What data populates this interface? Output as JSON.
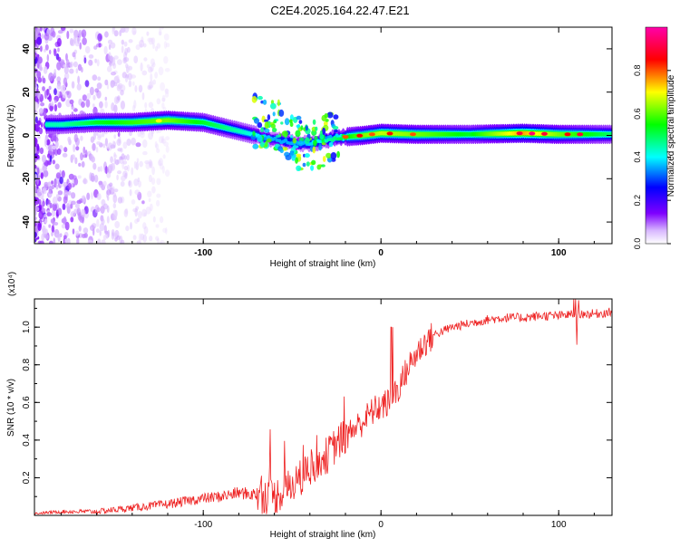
{
  "title": "C2E4.2025.164.22.47.E21",
  "chart_data": [
    {
      "type": "heatmap",
      "xlabel": "Height of straight line (km)",
      "ylabel": "Frequency (Hz)",
      "xlim": [
        -195,
        130
      ],
      "ylim": [
        -50,
        50
      ],
      "xticks": [
        -100,
        0,
        100
      ],
      "xtick_labels": [
        "-100",
        "0",
        "100"
      ],
      "yticks": [
        -40,
        -20,
        0,
        20,
        40
      ],
      "ytick_labels": [
        "-40",
        "-20",
        "0",
        "20",
        "40"
      ],
      "colorbar": {
        "label": "Normalized spectral amplitude",
        "range": [
          0,
          1
        ],
        "ticks": [
          0,
          0.2,
          0.4,
          0.6,
          0.8
        ],
        "tick_labels": [
          "0.0",
          "0.2",
          "0.4",
          "0.6",
          "0.8"
        ],
        "colormap": [
          "#ffffff",
          "#7f00ff",
          "#0000ff",
          "#00ffff",
          "#00ff00",
          "#ffff00",
          "#ff0000",
          "#ff00ff"
        ]
      },
      "ridge": {
        "x": [
          -180,
          -160,
          -140,
          -120,
          -100,
          -80,
          -60,
          -45,
          -35,
          -25,
          -10,
          0,
          20,
          50,
          80,
          100,
          130
        ],
        "freq": [
          5,
          6,
          6,
          7,
          6,
          2,
          -2,
          -4,
          -3,
          -1,
          0,
          1,
          0.5,
          0.5,
          1,
          0.5,
          0.5
        ],
        "amplitude": [
          0.5,
          0.6,
          0.65,
          0.7,
          0.6,
          0.5,
          0.4,
          0.4,
          0.45,
          0.55,
          0.7,
          0.75,
          0.7,
          0.6,
          0.85,
          0.7,
          0.55
        ]
      },
      "grid": false
    },
    {
      "type": "line",
      "xlabel": "Height of straight line (km)",
      "ylabel": "SNR (10 * v/v)",
      "y_scale_label": "(x10⁴)",
      "xlim": [
        -195,
        130
      ],
      "ylim": [
        0,
        1.15
      ],
      "xticks": [
        -100,
        0,
        100
      ],
      "xtick_labels": [
        "-100",
        "0",
        "100"
      ],
      "yticks": [
        0.2,
        0.4,
        0.6,
        0.8,
        1.0
      ],
      "ytick_labels": [
        "0.2",
        "0.4",
        "0.6",
        "0.8",
        "1.0"
      ],
      "series": [
        {
          "color": "#ee2222",
          "x": [
            -195,
            -180,
            -160,
            -140,
            -120,
            -100,
            -90,
            -80,
            -70,
            -60,
            -55,
            -50,
            -45,
            -40,
            -35,
            -30,
            -25,
            -20,
            -15,
            -10,
            -5,
            0,
            5,
            10,
            15,
            20,
            25,
            30,
            35,
            40,
            50,
            60,
            70,
            80,
            90,
            100,
            110,
            120,
            130
          ],
          "y": [
            0.01,
            0.02,
            0.02,
            0.04,
            0.06,
            0.09,
            0.1,
            0.12,
            0.11,
            0.1,
            0.13,
            0.16,
            0.2,
            0.25,
            0.3,
            0.32,
            0.38,
            0.42,
            0.46,
            0.5,
            0.55,
            0.58,
            0.6,
            0.68,
            0.78,
            0.86,
            0.92,
            0.96,
            0.98,
            1.0,
            1.02,
            1.04,
            1.05,
            1.05,
            1.06,
            1.06,
            1.07,
            1.07,
            1.08
          ]
        }
      ],
      "grid": false
    }
  ]
}
